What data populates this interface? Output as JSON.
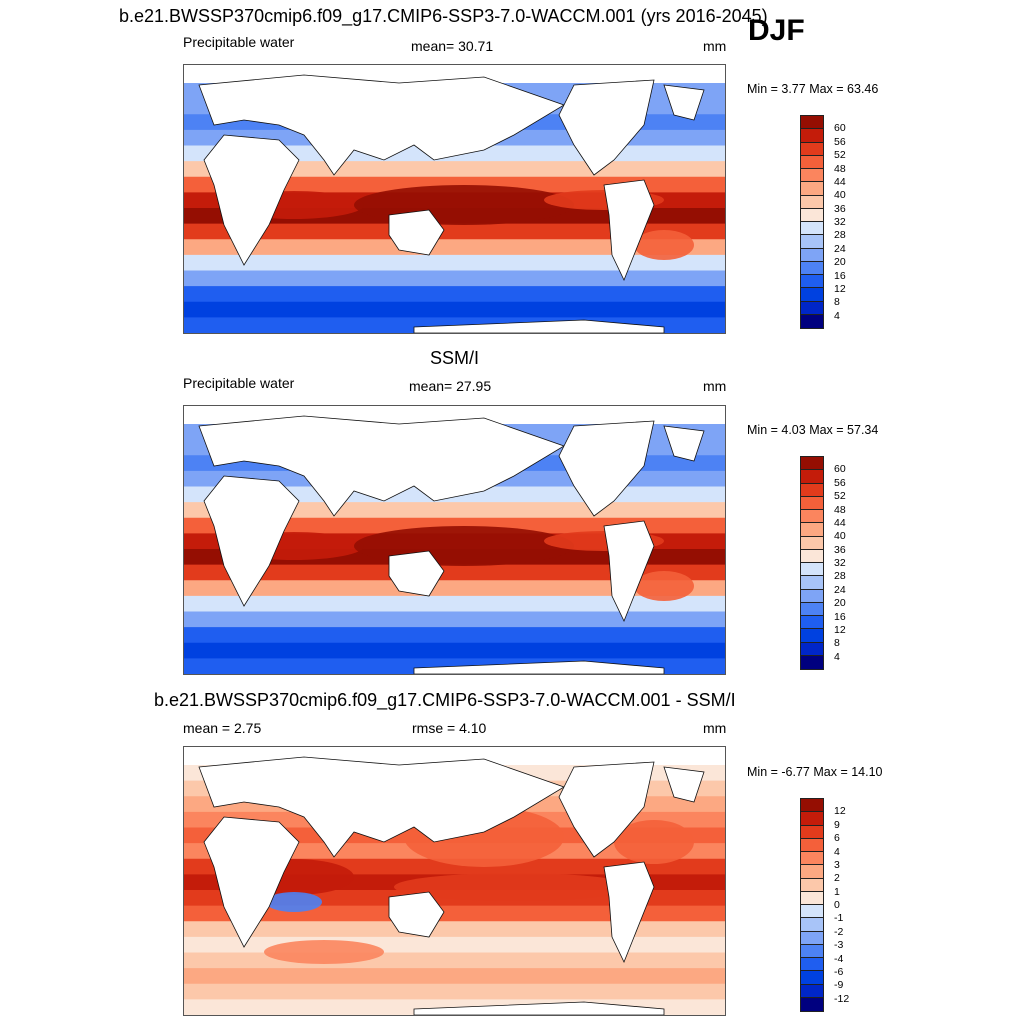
{
  "header": {
    "season": "DJF"
  },
  "colors": {
    "abs_levels": [
      "#00007f",
      "#0026c8",
      "#0041e0",
      "#1f5ef0",
      "#4d82f4",
      "#7ea4f6",
      "#a8c4f8",
      "#d4e4fb",
      "#fbe6d8",
      "#fcc8aa",
      "#fca882",
      "#fb855e",
      "#f4603a",
      "#e23b1c",
      "#c41c0a",
      "#950e02"
    ],
    "diff_levels": [
      "#00007f",
      "#0026c8",
      "#0041e0",
      "#1f5ef0",
      "#4d82f4",
      "#7ea4f6",
      "#a8c4f8",
      "#d4e4fb",
      "#fbe6d8",
      "#fcc8aa",
      "#fca882",
      "#fb855e",
      "#f4603a",
      "#e23b1c",
      "#c41c0a",
      "#950e02"
    ]
  },
  "panels": [
    {
      "title": "b.e21.BWSSP370cmip6.f09_g17.CMIP6-SSP3-7.0-WACCM.001 (yrs 2016-2045)",
      "left_label": "Precipitable water",
      "center_label": "mean=  30.71",
      "units": "mm",
      "minmax": "Min =   3.77 Max =  63.46",
      "colorbar_ticks": [
        "60",
        "56",
        "52",
        "48",
        "44",
        "40",
        "36",
        "32",
        "28",
        "24",
        "20",
        "16",
        "12",
        "8",
        "4"
      ]
    },
    {
      "title": "SSM/I",
      "left_label": "Precipitable water",
      "center_label": "mean=  27.95",
      "units": "mm",
      "minmax": "Min =   4.03 Max =  57.34",
      "colorbar_ticks": [
        "60",
        "56",
        "52",
        "48",
        "44",
        "40",
        "36",
        "32",
        "28",
        "24",
        "20",
        "16",
        "12",
        "8",
        "4"
      ]
    },
    {
      "title": "b.e21.BWSSP370cmip6.f09_g17.CMIP6-SSP3-7.0-WACCM.001 - SSM/I",
      "left_label": "mean =   2.75",
      "center_label": "rmse =   4.10",
      "units": "mm",
      "minmax": "Min =  -6.77 Max =  14.10",
      "colorbar_ticks": [
        "12",
        "9",
        "6",
        "4",
        "3",
        "2",
        "1",
        "0",
        "-1",
        "-2",
        "-3",
        "-4",
        "-6",
        "-9",
        "-12"
      ]
    }
  ]
}
